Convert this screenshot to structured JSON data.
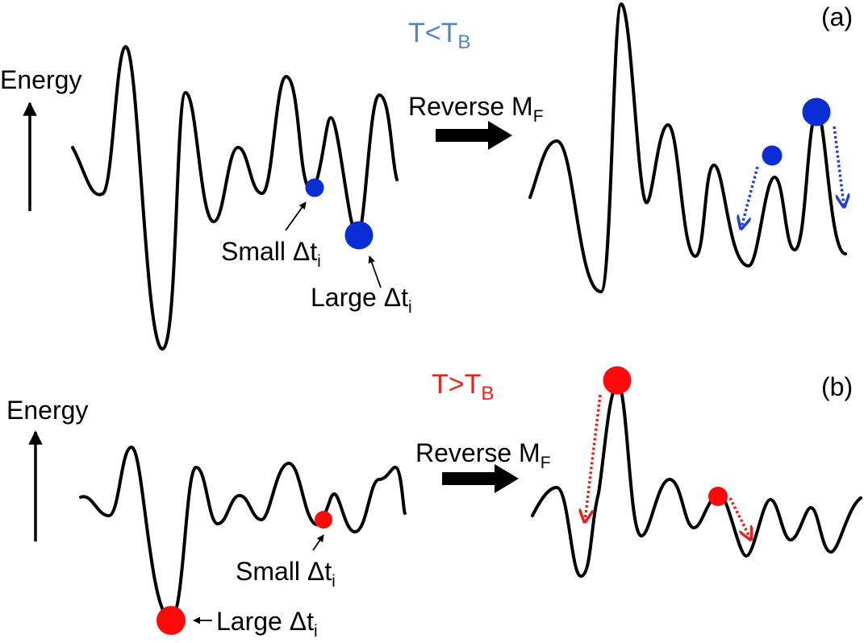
{
  "colors": {
    "blue_title": "#4a86c8",
    "red_title": "#e8221b",
    "blue_ball": "#0a2ed6",
    "red_ball": "#ff0a0a",
    "curve": "#000000"
  },
  "panel_a": {
    "label": "(a)",
    "title_main": "T<T",
    "title_sub": "B",
    "energy_label": "Energy",
    "arrow_label_main": "Reverse M",
    "arrow_label_sub": "F",
    "small_label_main": "Small Δt",
    "small_label_sub": "i",
    "large_label_main": "Large Δt",
    "large_label_sub": "i"
  },
  "panel_b": {
    "label": "(b)",
    "title_main": "T>T",
    "title_sub": "B",
    "energy_label": "Energy",
    "arrow_label_main": "Reverse M",
    "arrow_label_sub": "F",
    "small_label_main": "Small Δt",
    "small_label_sub": "i",
    "large_label_main": "Large Δt",
    "large_label_sub": "i"
  }
}
